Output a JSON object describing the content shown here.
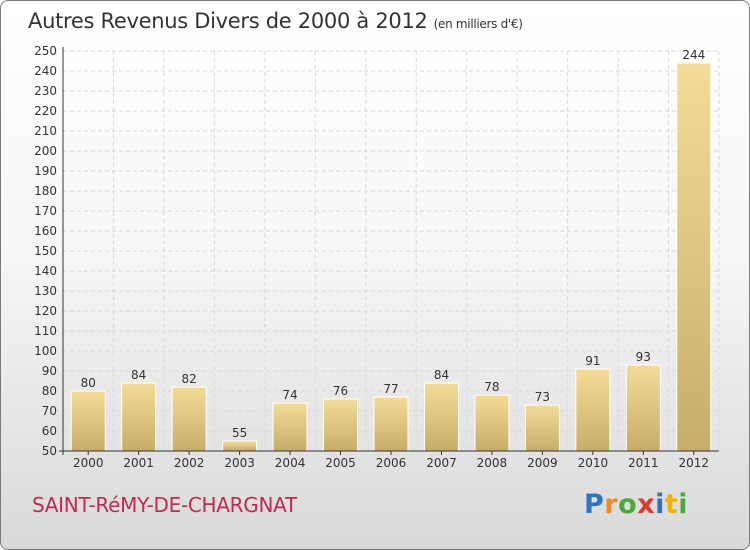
{
  "chart_data": {
    "type": "bar",
    "title": "Autres Revenus Divers de 2000 à 2012",
    "subtitle": "(en milliers d'€)",
    "categories": [
      "2000",
      "2001",
      "2002",
      "2003",
      "2004",
      "2005",
      "2006",
      "2007",
      "2008",
      "2009",
      "2010",
      "2011",
      "2012"
    ],
    "values": [
      80,
      84,
      82,
      55,
      74,
      76,
      77,
      84,
      78,
      73,
      91,
      93,
      244
    ],
    "ylim": [
      50,
      250
    ],
    "ytick_step": 10,
    "grid": true,
    "colors": {
      "bar_light": "#f5dc96",
      "bar_dark": "#c8ad68",
      "grid": "#d9d9d9"
    }
  },
  "footer": {
    "commune": "SAINT-RéMY-DE-CHARGNAT",
    "logo_letters": [
      "P",
      "r",
      "o",
      "x",
      "i",
      "t",
      "i"
    ],
    "logo_colors": [
      "#2f73c6",
      "#f08a24",
      "#4aa83c",
      "#e03a2a",
      "#2f73c6",
      "#f0b400",
      "#4aa83c"
    ]
  }
}
